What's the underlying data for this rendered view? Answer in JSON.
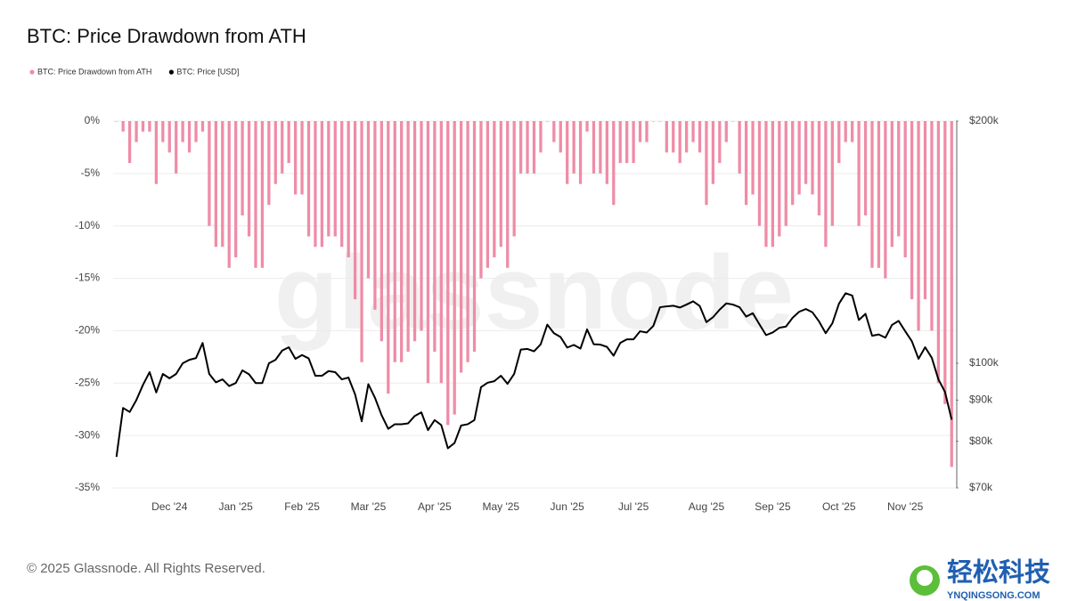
{
  "chart_data": {
    "type": "combo",
    "title": "BTC: Price Drawdown from ATH",
    "legend_position": "top-left",
    "grid": true,
    "watermark": "glassnode",
    "footer": "© 2025 Glassnode. All Rights Reserved.",
    "logo": {
      "text": "轻松科技",
      "url": "YNQINGSONG.COM"
    },
    "categories": [
      null,
      null,
      null,
      null,
      null,
      null,
      null,
      null,
      "Dec '24",
      null,
      null,
      null,
      null,
      null,
      null,
      null,
      null,
      null,
      "Jan '25",
      null,
      null,
      null,
      null,
      null,
      null,
      null,
      null,
      null,
      "Feb '25",
      null,
      null,
      null,
      null,
      null,
      null,
      null,
      null,
      null,
      "Mar '25",
      null,
      null,
      null,
      null,
      null,
      null,
      null,
      null,
      null,
      "Apr '25",
      null,
      null,
      null,
      null,
      null,
      null,
      null,
      null,
      null,
      "May '25",
      null,
      null,
      null,
      null,
      null,
      null,
      null,
      null,
      null,
      "Jun '25",
      null,
      null,
      null,
      null,
      null,
      null,
      null,
      null,
      null,
      "Jul '25",
      null,
      null,
      null,
      null,
      null,
      null,
      null,
      null,
      null,
      null,
      "Aug '25",
      null,
      null,
      null,
      null,
      null,
      null,
      null,
      null,
      null,
      "Sep '25",
      null,
      null,
      null,
      null,
      null,
      null,
      null,
      null,
      null,
      "Oct '25",
      null,
      null,
      null,
      null,
      null,
      null,
      null,
      null,
      null,
      "Nov '25",
      null,
      null,
      null,
      null,
      null,
      null,
      null
    ],
    "series": [
      {
        "name": "BTC: Price Drawdown from ATH",
        "type": "bar",
        "color": "#ef8ca6",
        "values": [
          0,
          -1,
          -4,
          -2,
          -1,
          -1,
          -6,
          -2,
          -3,
          -5,
          -2,
          -3,
          -2,
          -1,
          -10,
          -12,
          -12,
          -14,
          -13,
          -9,
          -11,
          -14,
          -14,
          -8,
          -6,
          -5,
          -4,
          -7,
          -7,
          -11,
          -12,
          -12,
          -11,
          -11,
          -12,
          -13,
          -17,
          -23,
          -15,
          -18,
          -21,
          -26,
          -23,
          -23,
          -22,
          -21,
          -20,
          -25,
          -22,
          -25,
          -29,
          -28,
          -24,
          -23,
          -22,
          -15,
          -14,
          -13,
          -12,
          -14,
          -11,
          -5,
          -5,
          -5,
          -3,
          0,
          -2,
          -3,
          -6,
          -5,
          -6,
          -1,
          -5,
          -5,
          -6,
          -8,
          -4,
          -4,
          -4,
          -2,
          -2,
          0,
          0,
          -3,
          -3,
          -4,
          -3,
          -2,
          -3,
          -8,
          -6,
          -4,
          -2,
          0,
          -5,
          -8,
          -7,
          -10,
          -12,
          -12,
          -11,
          -10,
          -8,
          -7,
          -6,
          -7,
          -9,
          -12,
          -10,
          -4,
          -2,
          -2,
          -10,
          -9,
          -14,
          -14,
          -15,
          -12,
          -11,
          -13,
          -17,
          -20,
          -17,
          -20,
          -25,
          -27,
          -33
        ]
      },
      {
        "name": "BTC: Price [USD]",
        "type": "line",
        "axis": "y2",
        "color": "#000000",
        "values": [
          76500,
          88000,
          87000,
          90000,
          94000,
          97500,
          92000,
          97000,
          95800,
          97000,
          100000,
          101000,
          101500,
          106000,
          97000,
          94700,
          95500,
          93700,
          94500,
          98000,
          96900,
          94500,
          94500,
          100000,
          101000,
          103700,
          104700,
          101300,
          102400,
          101400,
          96500,
          96500,
          97800,
          97500,
          95500,
          96000,
          91500,
          84700,
          94200,
          90600,
          86200,
          82900,
          84000,
          84000,
          84200,
          86000,
          86900,
          82600,
          85000,
          83800,
          78400,
          79600,
          83700,
          84000,
          85000,
          93400,
          94600,
          95000,
          96500,
          94300,
          97000,
          104000,
          104200,
          103500,
          105600,
          111700,
          109000,
          107800,
          104600,
          105400,
          104300,
          110200,
          105600,
          105500,
          104800,
          102200,
          106000,
          107100,
          107100,
          109600,
          109200,
          111300,
          117400,
          117700,
          117900,
          117300,
          118300,
          119400,
          117800,
          112500,
          114100,
          116600,
          118700,
          118300,
          117400,
          114300,
          115400,
          111800,
          108400,
          109200,
          110700,
          111100,
          113900,
          115900,
          116800,
          115700,
          112700,
          109000,
          112100,
          118600,
          122200,
          121400,
          113200,
          115200,
          108200,
          108600,
          107600,
          111600,
          112900,
          109600,
          106500,
          101300,
          104700,
          101600,
          95500,
          92100,
          85100
        ]
      }
    ],
    "ylim": [
      -35,
      0
    ],
    "yticks": [
      {
        "value": 0,
        "label": "0%"
      },
      {
        "value": -5,
        "label": "-5%"
      },
      {
        "value": -10,
        "label": "-10%"
      },
      {
        "value": -15,
        "label": "-15%"
      },
      {
        "value": -20,
        "label": "-20%"
      },
      {
        "value": -25,
        "label": "-25%"
      },
      {
        "value": -30,
        "label": "-30%"
      },
      {
        "value": -35,
        "label": "-35%"
      }
    ],
    "y2lim": [
      70000,
      200000
    ],
    "y2log": true,
    "y2ticks": [
      {
        "value": 200000,
        "label": "$200k"
      },
      {
        "value": 100000,
        "label": "$100k"
      },
      {
        "value": 90000,
        "label": "$90k"
      },
      {
        "value": 80000,
        "label": "$80k"
      },
      {
        "value": 70000,
        "label": "$70k"
      }
    ]
  }
}
